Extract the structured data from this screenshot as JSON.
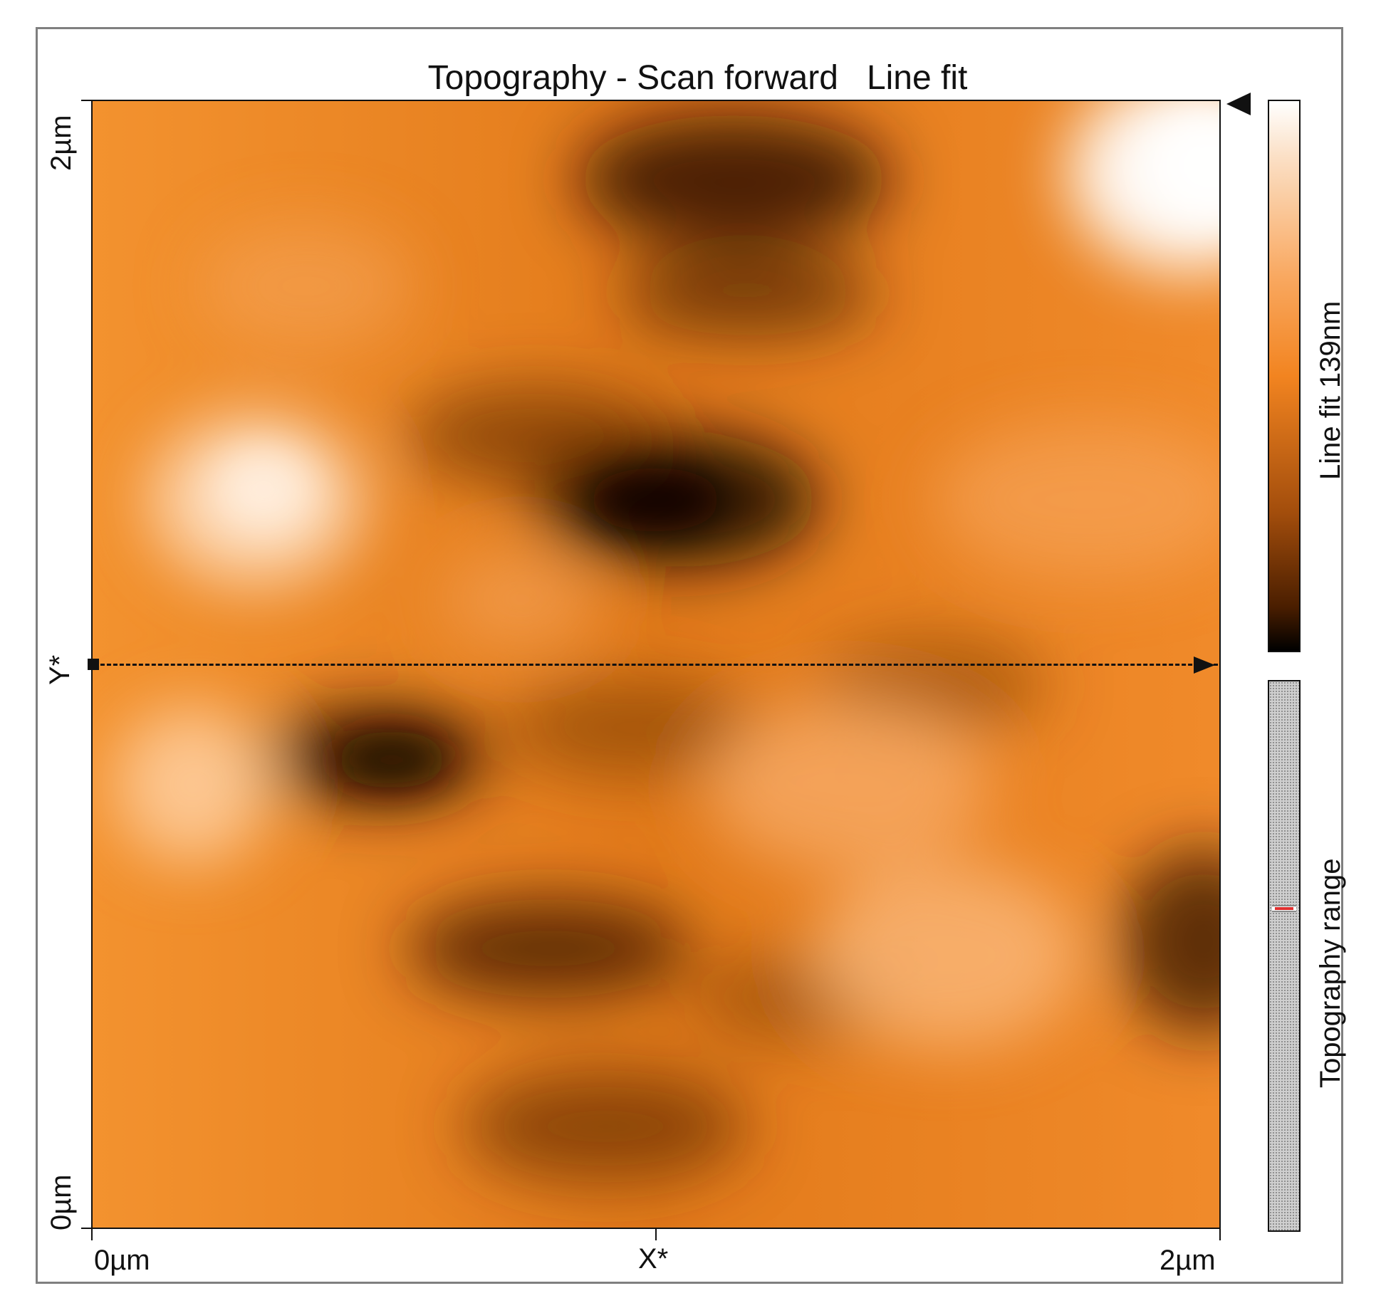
{
  "window": {
    "title": "Topography - Scan forward   Line fit"
  },
  "axes": {
    "y_top_label": "2µm",
    "y_mid_label": "Y*",
    "y_bottom_label": "0µm",
    "x_left_label": "0µm",
    "x_mid_label": "X*",
    "x_right_label": "2µm"
  },
  "colorbar": {
    "label": "Line fit 139nm"
  },
  "range_bar": {
    "label": "Topography range"
  },
  "colors": {
    "map_light": "#f9b070",
    "map_mid": "#f08020",
    "map_dark": "#3a1a00"
  }
}
